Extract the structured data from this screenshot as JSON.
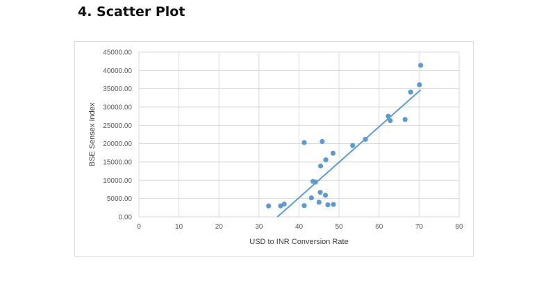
{
  "page": {
    "heading": "4. Scatter Plot"
  },
  "chart_data": {
    "type": "scatter",
    "title": "",
    "xlabel": "USD to INR Conversion Rate",
    "ylabel": "BSE Sensex Index",
    "xlim": [
      0,
      80
    ],
    "ylim": [
      0,
      45000
    ],
    "x_ticks": [
      "0",
      "10",
      "20",
      "30",
      "40",
      "50",
      "60",
      "70",
      "80"
    ],
    "y_ticks": [
      "0.00",
      "5000.00",
      "10000.00",
      "15000.00",
      "20000.00",
      "25000.00",
      "30000.00",
      "35000.00",
      "40000.00",
      "45000.00"
    ],
    "grid": true,
    "legend": "none",
    "colors": {
      "points": "#5b9bd5",
      "trendline": "#5b9bd5",
      "grid": "#d9d9d9"
    },
    "points": [
      {
        "x": 32.4,
        "y": 3000
      },
      {
        "x": 35.4,
        "y": 3000
      },
      {
        "x": 36.3,
        "y": 3500
      },
      {
        "x": 41.3,
        "y": 3100
      },
      {
        "x": 43.1,
        "y": 5200
      },
      {
        "x": 43.5,
        "y": 9700
      },
      {
        "x": 44.1,
        "y": 9500
      },
      {
        "x": 45.0,
        "y": 4000
      },
      {
        "x": 45.3,
        "y": 6700
      },
      {
        "x": 45.4,
        "y": 13900
      },
      {
        "x": 46.6,
        "y": 5900
      },
      {
        "x": 46.7,
        "y": 15600
      },
      {
        "x": 47.2,
        "y": 3300
      },
      {
        "x": 48.5,
        "y": 17400
      },
      {
        "x": 48.6,
        "y": 3400
      },
      {
        "x": 41.3,
        "y": 20300
      },
      {
        "x": 45.8,
        "y": 20600
      },
      {
        "x": 53.4,
        "y": 19500
      },
      {
        "x": 56.6,
        "y": 21200
      },
      {
        "x": 62.3,
        "y": 27500
      },
      {
        "x": 62.8,
        "y": 26300
      },
      {
        "x": 66.5,
        "y": 26600
      },
      {
        "x": 67.9,
        "y": 34100
      },
      {
        "x": 70.1,
        "y": 36100
      },
      {
        "x": 70.4,
        "y": 41400
      }
    ],
    "trendline": {
      "type": "linear",
      "start": {
        "x": 34.6,
        "y": 0
      },
      "end": {
        "x": 70.4,
        "y": 34700
      }
    }
  }
}
